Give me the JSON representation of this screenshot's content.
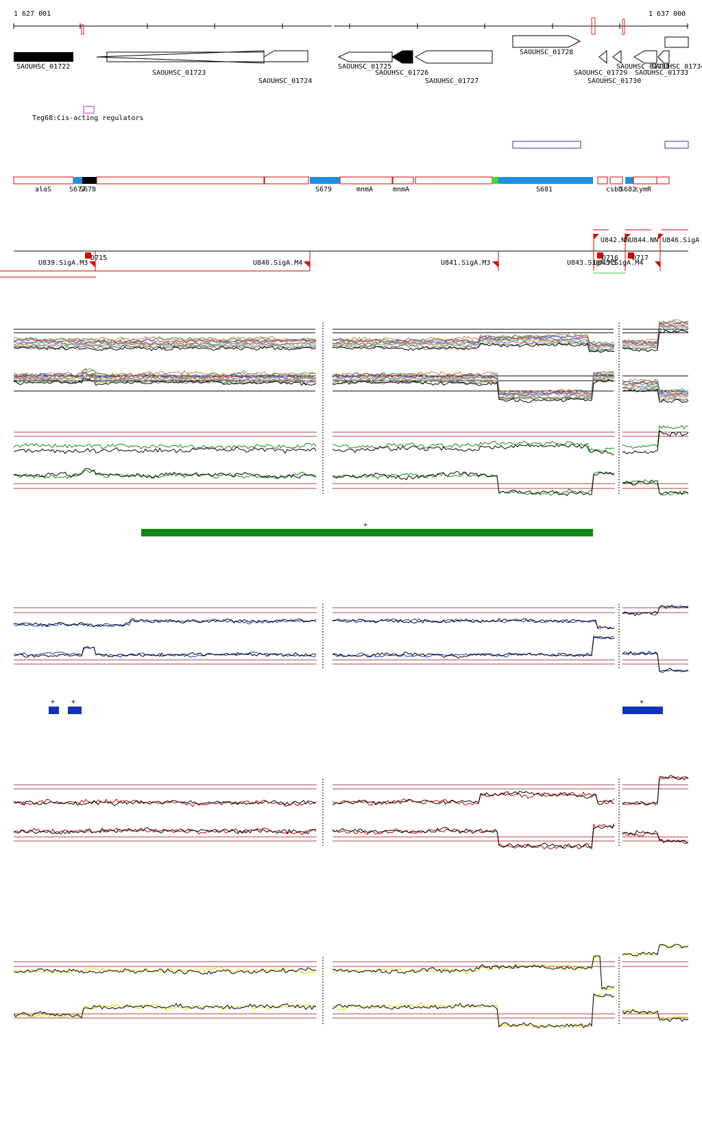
{
  "ruler": {
    "start_label": "1 627 001",
    "end_label": "1 637 000"
  },
  "genes": [
    {
      "label": "SAOUHSC_01722"
    },
    {
      "label": "SAOUHSC_01723"
    },
    {
      "label": "SAOUHSC_01724"
    },
    {
      "label": "SAOUHSC_01725"
    },
    {
      "label": "SAOUHSC_01726"
    },
    {
      "label": "SAOUHSC_01727"
    },
    {
      "label": "SAOUHSC_01728"
    },
    {
      "label": "SAOUHSC_01729"
    },
    {
      "label": "SAOUHSC_01730"
    },
    {
      "label": "SAOUHSC_01731"
    },
    {
      "label": "SAOUHSC_01733"
    },
    {
      "label": "SAOUHSC_01734"
    }
  ],
  "regulators": {
    "label": "Teg68:Cis-acting regulators"
  },
  "transcripts": [
    {
      "label": "alaS"
    },
    {
      "label": "S677"
    },
    {
      "label": "S678"
    },
    {
      "label": "S679"
    },
    {
      "label": "mnmA"
    },
    {
      "label": "mnmA"
    },
    {
      "label": "S681"
    },
    {
      "label": "csbD"
    },
    {
      "label": "S682"
    },
    {
      "label": "cymR"
    }
  ],
  "units": [
    {
      "label": "U839.SigA.M3"
    },
    {
      "label": "U840.SigA.M4"
    },
    {
      "label": "U841.SigA.M3"
    },
    {
      "label": "U843.SigA.M5"
    },
    {
      "label": "U845.SigA.M4"
    },
    {
      "label": "U842.NN"
    },
    {
      "label": "U844.NN"
    },
    {
      "label": "U846.SigA"
    }
  ],
  "downshifts": [
    {
      "label": "D715"
    },
    {
      "label": "D716"
    },
    {
      "label": "D717"
    }
  ],
  "marks": {
    "plus": "+"
  },
  "colors": {
    "gene_fill": "#000000",
    "transcript_outline": "#dd0000",
    "transcript_blue": "#1e90e0",
    "transcript_green": "#33dd33",
    "green_track": "#118811",
    "blue_track": "#1133bb",
    "red_track": "#bb0000",
    "yellow_track": "#dddd00",
    "threshold": "#aa4444"
  }
}
